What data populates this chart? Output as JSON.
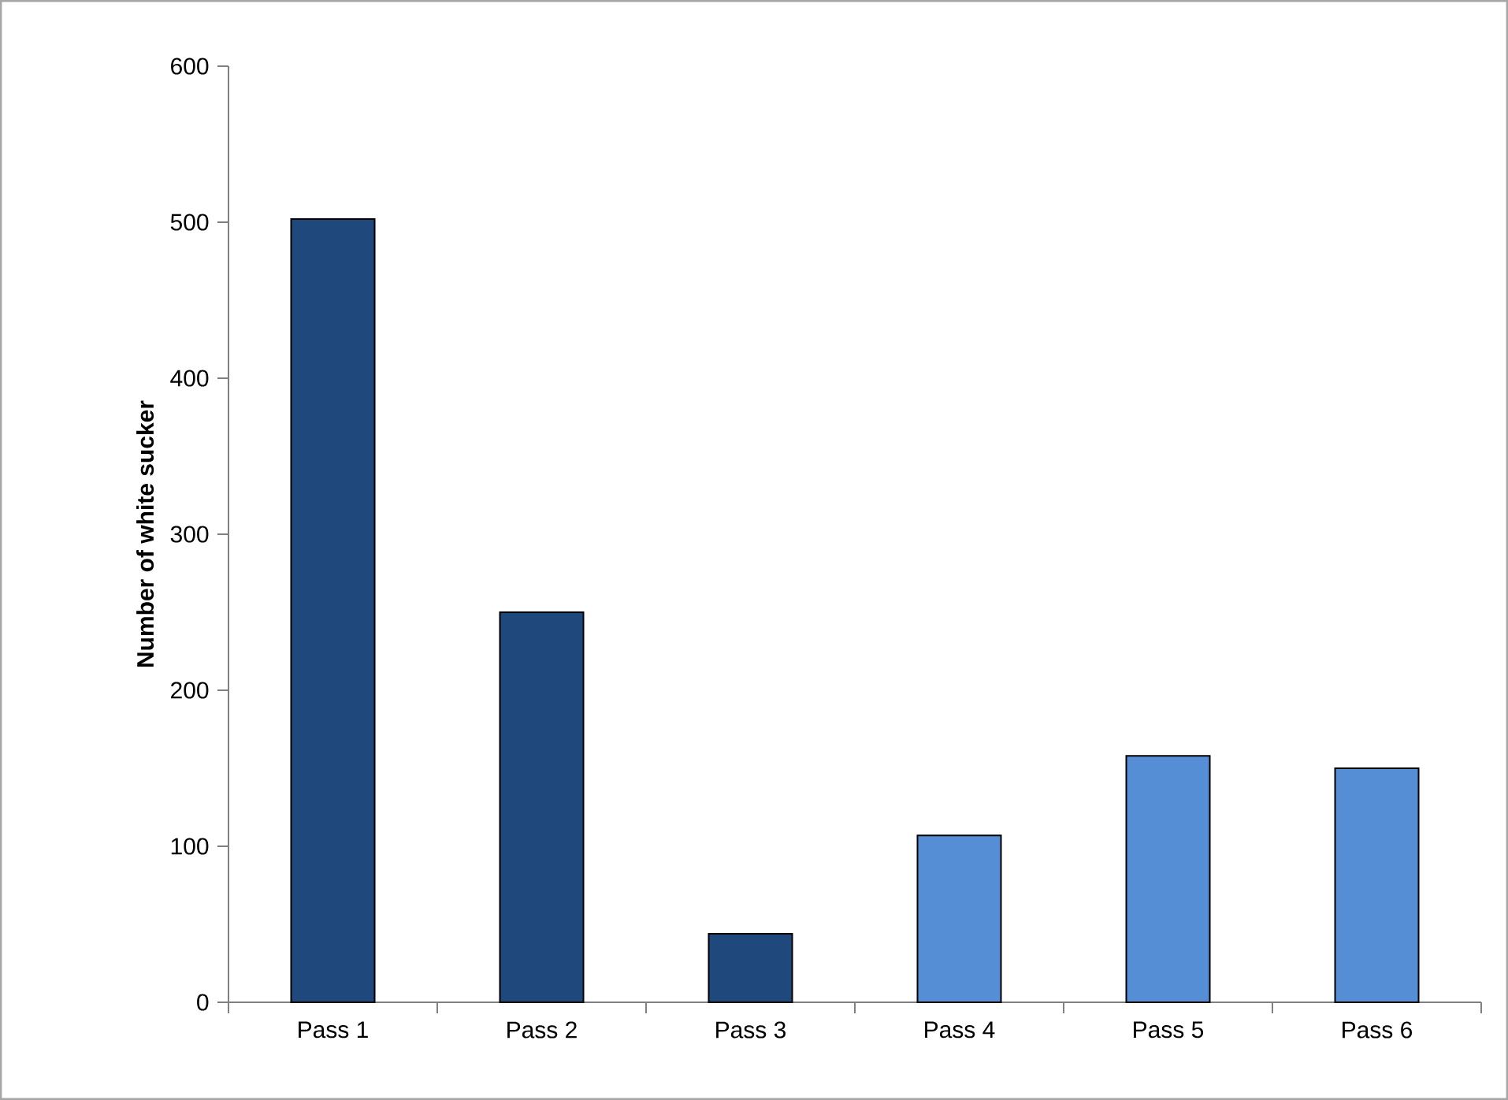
{
  "chart_data": {
    "type": "bar",
    "ylabel": "Number of white sucker",
    "categories": [
      "Pass 1",
      "Pass 2",
      "Pass 3",
      "Pass 4",
      "Pass 5",
      "Pass 6"
    ],
    "values": [
      502,
      250,
      44,
      107,
      158,
      150
    ],
    "colors": [
      "#1f497d",
      "#1f497d",
      "#1f497d",
      "#558ed5",
      "#558ed5",
      "#558ed5"
    ],
    "ylim": [
      0,
      600
    ],
    "yticks": [
      0,
      100,
      200,
      300,
      400,
      500,
      600
    ]
  }
}
